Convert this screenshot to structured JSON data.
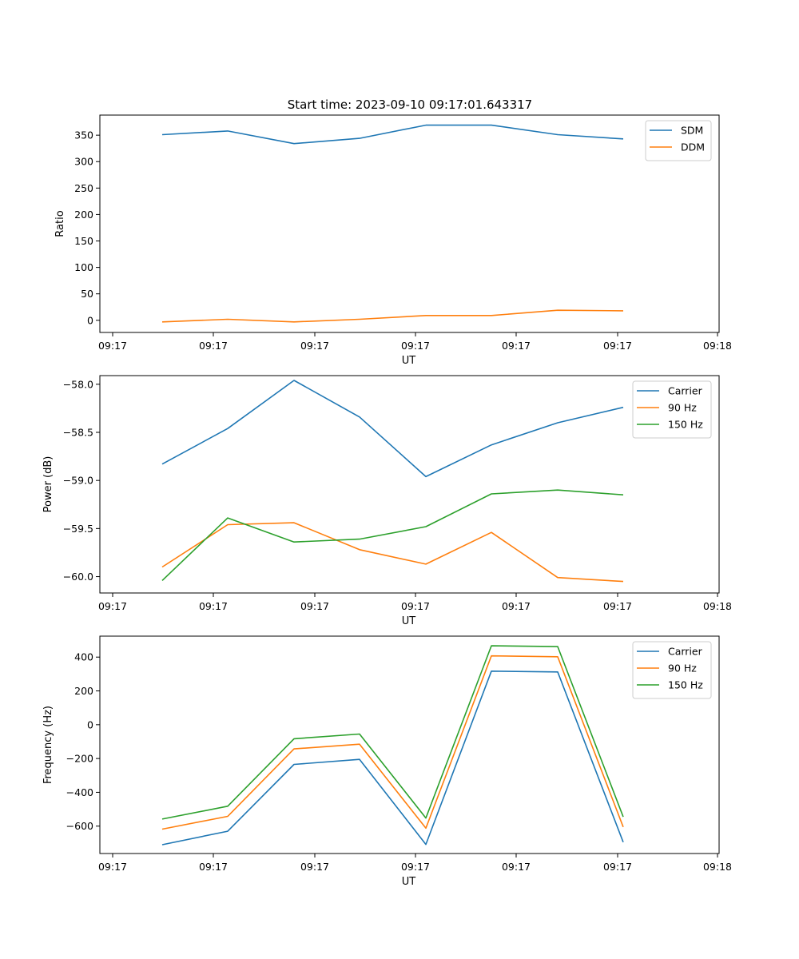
{
  "title": "Start time: 2023-09-10 09:17:01.643317",
  "chart_data": [
    {
      "type": "line",
      "xlabel": "UT",
      "ylabel": "Ratio",
      "xtick_labels": [
        "09:17",
        "09:17",
        "09:17",
        "09:17",
        "09:17",
        "09:17",
        "09:18"
      ],
      "yticks": [
        0,
        50,
        100,
        150,
        200,
        250,
        300,
        350
      ],
      "ylim": [
        -23,
        388
      ],
      "legend_position": "top-right",
      "series": [
        {
          "name": "SDM",
          "color": "#1f77b4",
          "values": [
            351,
            358,
            334,
            344,
            369,
            369,
            351,
            343
          ]
        },
        {
          "name": "DDM",
          "color": "#ff7f0e",
          "values": [
            -3,
            2,
            -3,
            2,
            9,
            9,
            19,
            18
          ]
        }
      ]
    },
    {
      "type": "line",
      "xlabel": "UT",
      "ylabel": "Power (dB)",
      "xtick_labels": [
        "09:17",
        "09:17",
        "09:17",
        "09:17",
        "09:17",
        "09:17",
        "09:18"
      ],
      "yticks": [
        -60.0,
        -59.5,
        -59.0,
        -58.5,
        -58.0
      ],
      "ytick_labels": [
        "−60.0",
        "−59.5",
        "−59.0",
        "−58.5",
        "−58.0"
      ],
      "ylim": [
        -60.17,
        -57.91
      ],
      "legend_position": "top-right",
      "series": [
        {
          "name": "Carrier",
          "color": "#1f77b4",
          "values": [
            -58.83,
            -58.46,
            -57.96,
            -58.34,
            -58.96,
            -58.63,
            -58.4,
            -58.24
          ]
        },
        {
          "name": "90 Hz",
          "color": "#ff7f0e",
          "values": [
            -59.9,
            -59.46,
            -59.44,
            -59.72,
            -59.87,
            -59.54,
            -60.01,
            -60.05
          ]
        },
        {
          "name": "150 Hz",
          "color": "#2ca02c",
          "values": [
            -60.04,
            -59.39,
            -59.64,
            -59.61,
            -59.48,
            -59.14,
            -59.1,
            -59.15
          ]
        }
      ]
    },
    {
      "type": "line",
      "xlabel": "UT",
      "ylabel": "Frequency (Hz)",
      "xtick_labels": [
        "09:17",
        "09:17",
        "09:17",
        "09:17",
        "09:17",
        "09:17",
        "09:18"
      ],
      "yticks": [
        -600,
        -400,
        -200,
        0,
        200,
        400
      ],
      "ytick_labels": [
        "−600",
        "−400",
        "−200",
        "0",
        "200",
        "400"
      ],
      "ylim": [
        -762,
        524
      ],
      "legend_position": "top-right",
      "series": [
        {
          "name": "Carrier",
          "color": "#1f77b4",
          "values": [
            -710,
            -630,
            -235,
            -205,
            -708,
            317,
            312,
            -695
          ]
        },
        {
          "name": "90 Hz",
          "color": "#ff7f0e",
          "values": [
            -618,
            -542,
            -143,
            -115,
            -612,
            407,
            402,
            -605
          ]
        },
        {
          "name": "150 Hz",
          "color": "#2ca02c",
          "values": [
            -558,
            -482,
            -83,
            -55,
            -552,
            467,
            462,
            -545
          ]
        }
      ]
    }
  ]
}
